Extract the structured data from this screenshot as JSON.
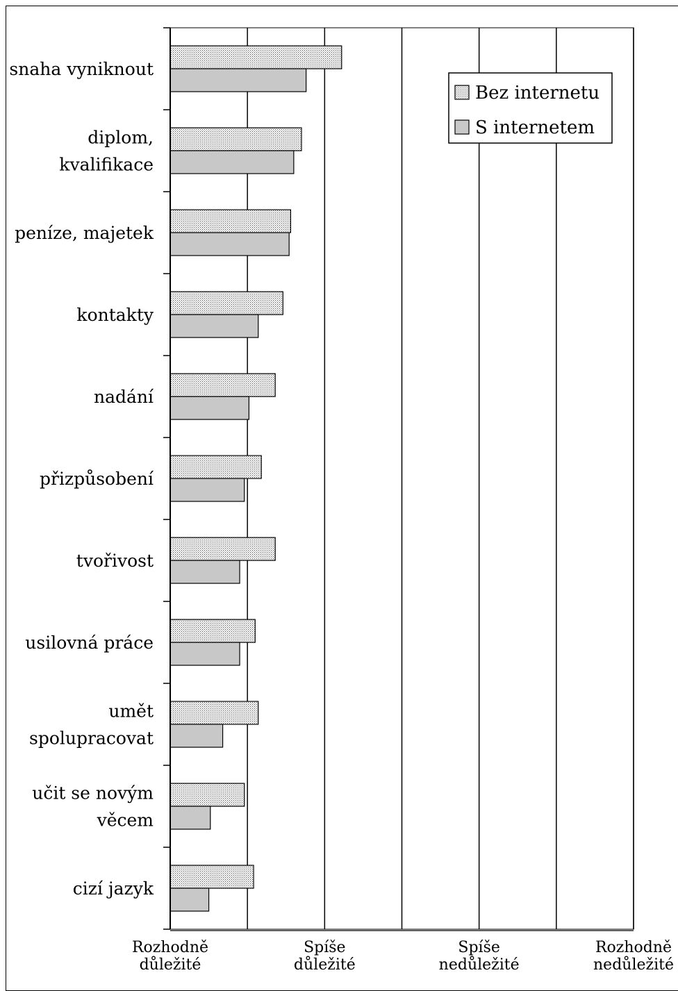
{
  "chart_data": {
    "type": "bar",
    "orientation": "horizontal",
    "categories": [
      [
        "snaha vyniknout"
      ],
      [
        "diplom,",
        "kvalifikace"
      ],
      [
        "peníze, majetek"
      ],
      [
        "kontakty"
      ],
      [
        "nadání"
      ],
      [
        "přizpůsobení"
      ],
      [
        "tvořivost"
      ],
      [
        "usilovná práce"
      ],
      [
        "umět",
        "spolupracovat"
      ],
      [
        "učit se novým",
        "věcem"
      ],
      [
        "cizí jazyk"
      ]
    ],
    "series": [
      {
        "name": "Bez internetu",
        "pattern": "dotted",
        "values": [
          2.11,
          1.85,
          1.78,
          1.73,
          1.68,
          1.59,
          1.68,
          1.55,
          1.57,
          1.48,
          1.54
        ]
      },
      {
        "name": "S internetem",
        "pattern": "solid",
        "fill": "#c8c8c8",
        "values": [
          1.88,
          1.8,
          1.77,
          1.57,
          1.51,
          1.48,
          1.45,
          1.45,
          1.34,
          1.26,
          1.25
        ]
      }
    ],
    "x_ticks": [
      {
        "value": 1,
        "label": [
          "Rozhodně",
          "důležité"
        ]
      },
      {
        "value": 2,
        "label": [
          "Spíše",
          "důležité"
        ]
      },
      {
        "value": 3,
        "label": [
          "Spíše",
          "nedůležité"
        ]
      },
      {
        "value": 4,
        "label": [
          "Rozhodně",
          "nedůležité"
        ]
      }
    ],
    "xlim": [
      1,
      4
    ],
    "gridlines_at": [
      1.5,
      2,
      2.5,
      3,
      3.5,
      4
    ],
    "grid": true,
    "legend_position": "top-right",
    "title": "",
    "xlabel": "",
    "ylabel": ""
  }
}
